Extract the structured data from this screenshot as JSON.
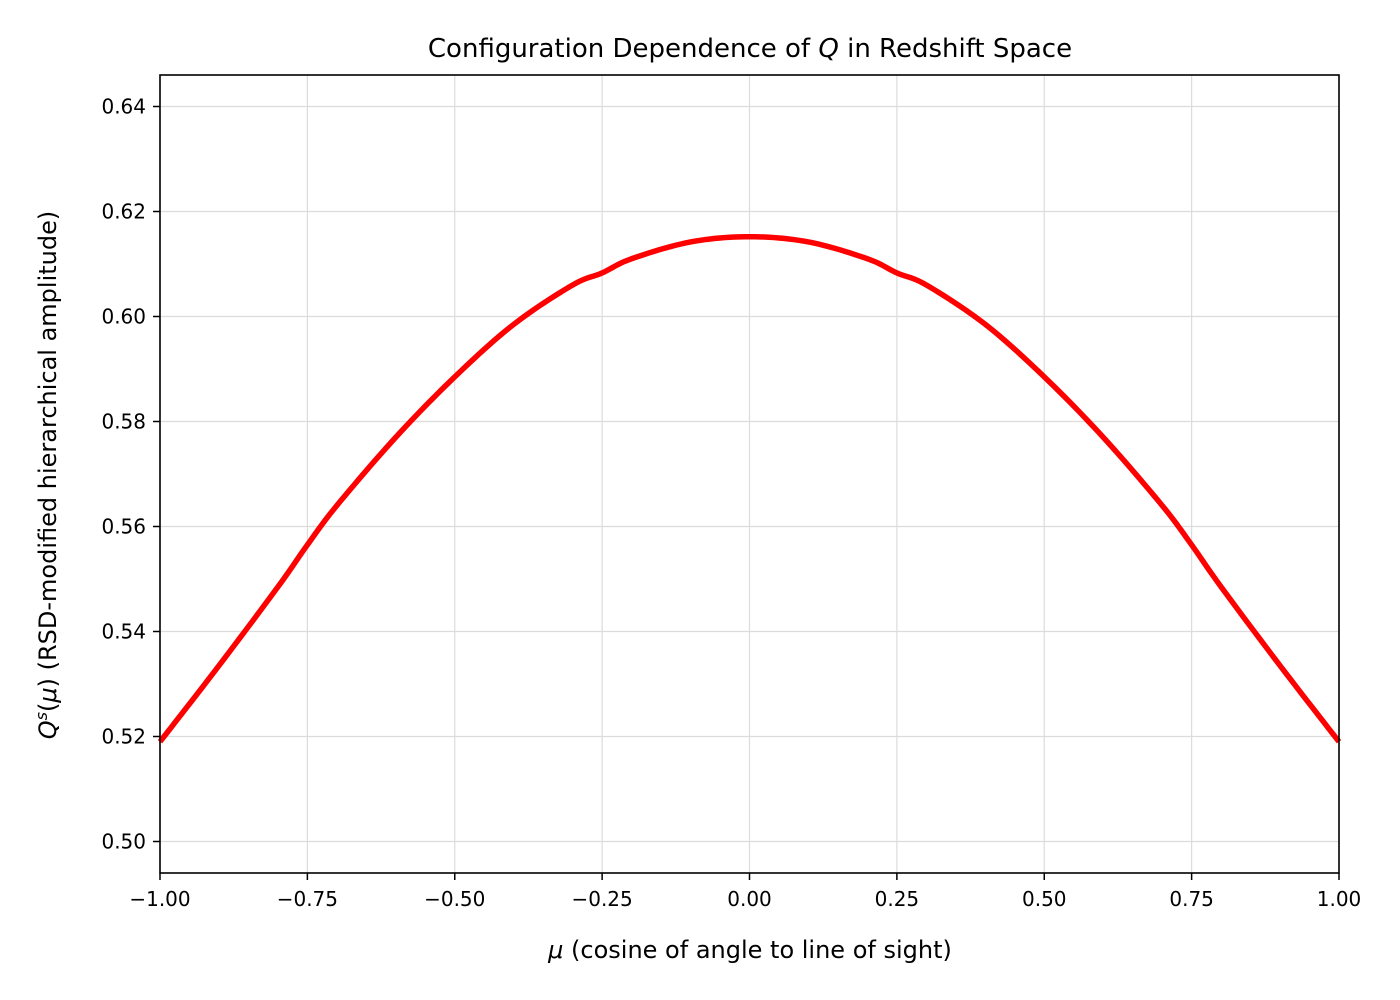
{
  "chart_data": {
    "type": "line",
    "title": "Configuration Dependence of Q in Redshift Space",
    "title_parts": {
      "before": "Configuration Dependence of ",
      "italic": "Q",
      "after": " in Redshift Space"
    },
    "xlabel": "μ (cosine of angle to line of sight)",
    "xlabel_parts": {
      "italic": "μ",
      "after": " (cosine of angle to line of sight)"
    },
    "ylabel": "Qˢ(μ) (RSD-modified hierarchical amplitude)",
    "ylabel_parts": {
      "italic_q": "Q",
      "sup": "s",
      "open": "(",
      "italic_mu": "μ",
      "close": ")",
      "after": " (RSD-modified hierarchical amplitude)"
    },
    "xlim": [
      -1.0,
      1.0
    ],
    "ylim": [
      0.494,
      0.646
    ],
    "x_ticks": [
      -1.0,
      -0.75,
      -0.5,
      -0.25,
      0.0,
      0.25,
      0.5,
      0.75,
      1.0
    ],
    "x_tick_labels": [
      "−1.00",
      "−0.75",
      "−0.50",
      "−0.25",
      "0.00",
      "0.25",
      "0.50",
      "0.75",
      "1.00"
    ],
    "y_ticks": [
      0.5,
      0.52,
      0.54,
      0.56,
      0.58,
      0.6,
      0.62,
      0.64
    ],
    "y_tick_labels": [
      "0.50",
      "0.52",
      "0.54",
      "0.56",
      "0.58",
      "0.60",
      "0.62",
      "0.64"
    ],
    "grid": true,
    "series": [
      {
        "name": "Qs(mu)",
        "color": "#ff0000",
        "x": [
          -1.0,
          -0.9,
          -0.8,
          -0.75,
          -0.7,
          -0.6,
          -0.5,
          -0.4,
          -0.3,
          -0.25,
          -0.2,
          -0.1,
          0.0,
          0.1,
          0.2,
          0.25,
          0.3,
          0.4,
          0.5,
          0.6,
          0.7,
          0.75,
          0.8,
          0.9,
          1.0
        ],
        "y": [
          0.519,
          0.5335,
          0.5485,
          0.5565,
          0.564,
          0.577,
          0.5885,
          0.5985,
          0.606,
          0.6083,
          0.611,
          0.6142,
          0.6152,
          0.6142,
          0.611,
          0.6083,
          0.606,
          0.5985,
          0.5885,
          0.577,
          0.564,
          0.5565,
          0.5485,
          0.5335,
          0.519
        ]
      }
    ]
  }
}
